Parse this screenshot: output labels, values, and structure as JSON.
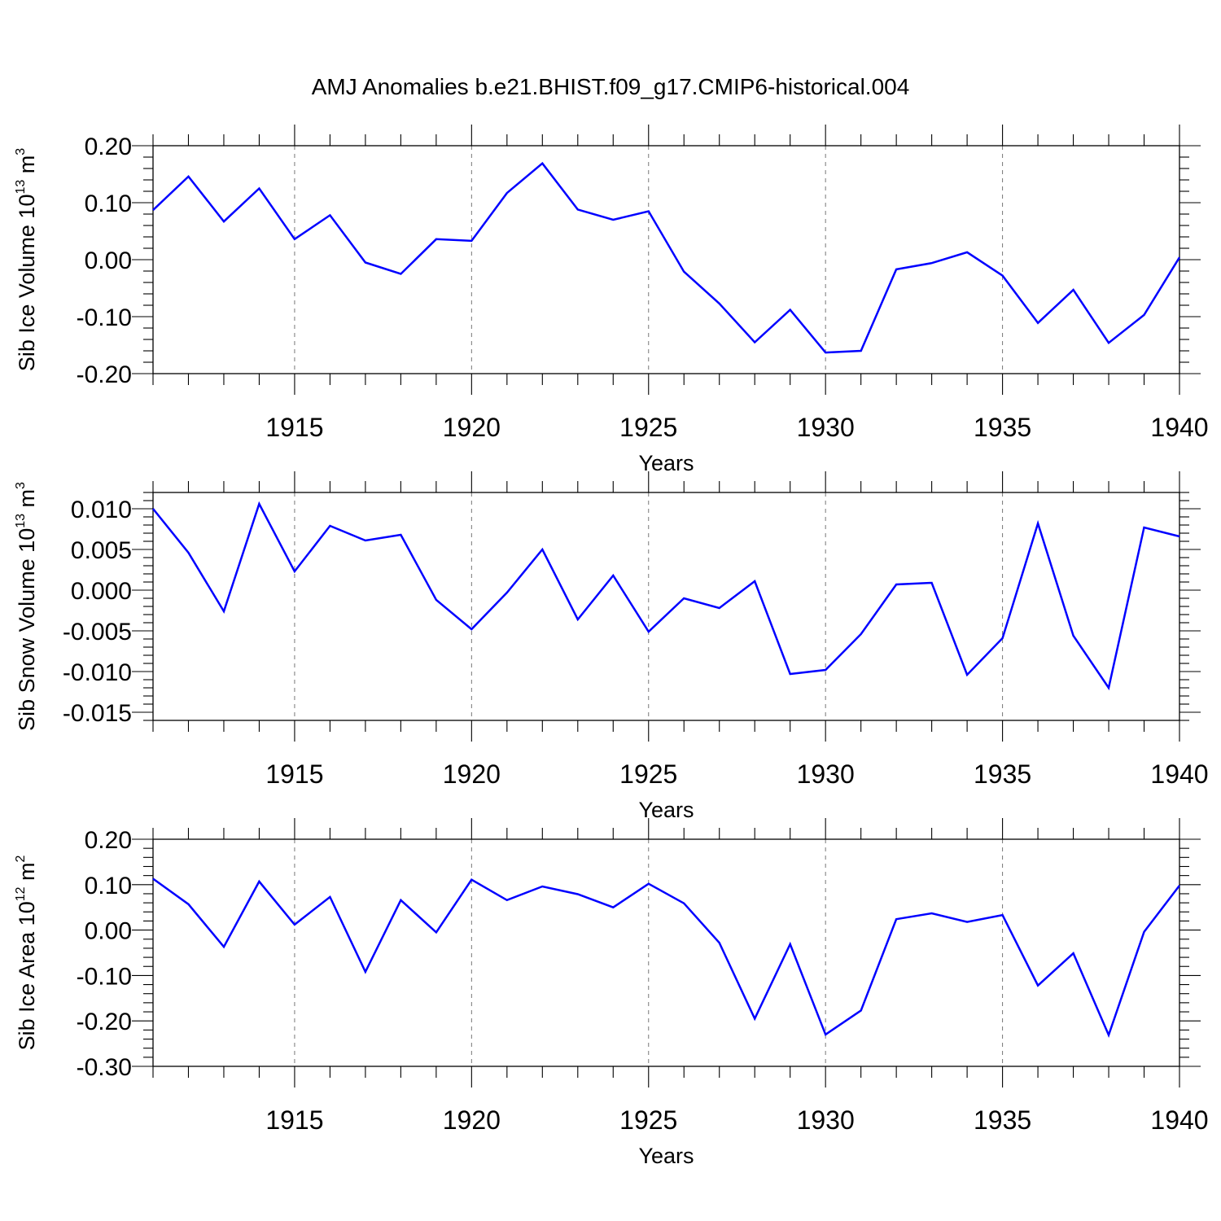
{
  "figure": {
    "title": "AMJ Anomalies b.e21.BHIST.f09_g17.CMIP6-historical.004"
  },
  "chart_data": [
    {
      "type": "line",
      "id": "ice-volume",
      "ylabel": "Sib Ice Volume 10",
      "ylabel_exp": "13",
      "ylabel_unit": " m",
      "ylabel_unit_exp": "3",
      "xlabel": "Years",
      "xlim": [
        1911,
        1940
      ],
      "ylim": [
        -0.2,
        0.2
      ],
      "yticks": [
        0.2,
        0.1,
        0.0,
        -0.1,
        -0.2
      ],
      "ytick_labels": [
        "0.20",
        "0.10",
        "0.00",
        "-0.10",
        "-0.20"
      ],
      "xticks": [
        1915,
        1920,
        1925,
        1930,
        1935,
        1940
      ],
      "xtick_labels": [
        "1915",
        "1920",
        "1925",
        "1930",
        "1935",
        "1940"
      ],
      "grid": "vertical dashed at major x ticks",
      "series": [
        {
          "name": "Sib Ice Volume",
          "color": "#0000ff",
          "x": [
            1911,
            1912,
            1913,
            1914,
            1915,
            1916,
            1917,
            1918,
            1919,
            1920,
            1921,
            1922,
            1923,
            1924,
            1925,
            1926,
            1927,
            1928,
            1929,
            1930,
            1931,
            1932,
            1933,
            1934,
            1935,
            1936,
            1937,
            1938,
            1939,
            1940
          ],
          "values": [
            0.087,
            0.146,
            0.067,
            0.125,
            0.036,
            0.078,
            -0.005,
            -0.025,
            0.036,
            0.033,
            0.117,
            0.169,
            0.088,
            0.07,
            0.085,
            -0.021,
            -0.077,
            -0.145,
            -0.088,
            -0.163,
            -0.16,
            -0.017,
            -0.006,
            0.013,
            -0.028,
            -0.111,
            -0.053,
            -0.146,
            -0.097,
            0.004
          ]
        }
      ]
    },
    {
      "type": "line",
      "id": "snow-volume",
      "ylabel": "Sib Snow Volume 10",
      "ylabel_exp": "13",
      "ylabel_unit": " m",
      "ylabel_unit_exp": "3",
      "xlabel": "Years",
      "xlim": [
        1911,
        1940
      ],
      "ylim": [
        -0.016,
        0.012
      ],
      "yticks": [
        0.01,
        0.005,
        0.0,
        -0.005,
        -0.01,
        -0.015
      ],
      "ytick_labels": [
        "0.010",
        "0.005",
        "0.000",
        "-0.005",
        "-0.010",
        "-0.015"
      ],
      "xticks": [
        1915,
        1920,
        1925,
        1930,
        1935,
        1940
      ],
      "xtick_labels": [
        "1915",
        "1920",
        "1925",
        "1930",
        "1935",
        "1940"
      ],
      "grid": "vertical dashed at major x ticks",
      "series": [
        {
          "name": "Sib Snow Volume",
          "color": "#0000ff",
          "x": [
            1911,
            1912,
            1913,
            1914,
            1915,
            1916,
            1917,
            1918,
            1919,
            1920,
            1921,
            1922,
            1923,
            1924,
            1925,
            1926,
            1927,
            1928,
            1929,
            1930,
            1931,
            1932,
            1933,
            1934,
            1935,
            1936,
            1937,
            1938,
            1939,
            1940
          ],
          "values": [
            0.01,
            0.0046,
            -0.0026,
            0.0106,
            0.0023,
            0.0079,
            0.0061,
            0.0068,
            -0.0012,
            -0.0048,
            -0.0003,
            0.005,
            -0.0036,
            0.0018,
            -0.0051,
            -0.001,
            -0.0022,
            0.0011,
            -0.0103,
            -0.0098,
            -0.0054,
            0.0007,
            0.0009,
            -0.0104,
            -0.0059,
            0.0082,
            -0.0056,
            -0.012,
            0.0077,
            0.0066
          ]
        }
      ]
    },
    {
      "type": "line",
      "id": "ice-area",
      "ylabel": "Sib Ice Area 10",
      "ylabel_exp": "12",
      "ylabel_unit": " m",
      "ylabel_unit_exp": "2",
      "xlabel": "Years",
      "xlim": [
        1911,
        1940
      ],
      "ylim": [
        -0.3,
        0.2
      ],
      "yticks": [
        0.2,
        0.1,
        0.0,
        -0.1,
        -0.2,
        -0.3
      ],
      "ytick_labels": [
        "0.20",
        "0.10",
        "0.00",
        "-0.10",
        "-0.20",
        "-0.30"
      ],
      "xticks": [
        1915,
        1920,
        1925,
        1930,
        1935,
        1940
      ],
      "xtick_labels": [
        "1915",
        "1920",
        "1925",
        "1930",
        "1935",
        "1940"
      ],
      "grid": "vertical dashed at major x ticks",
      "series": [
        {
          "name": "Sib Ice Area",
          "color": "#0000ff",
          "x": [
            1911,
            1912,
            1913,
            1914,
            1915,
            1916,
            1917,
            1918,
            1919,
            1920,
            1921,
            1922,
            1923,
            1924,
            1925,
            1926,
            1927,
            1928,
            1929,
            1930,
            1931,
            1932,
            1933,
            1934,
            1935,
            1936,
            1937,
            1938,
            1939,
            1940
          ],
          "values": [
            0.113,
            0.057,
            -0.037,
            0.107,
            0.012,
            0.073,
            -0.092,
            0.066,
            -0.005,
            0.111,
            0.066,
            0.096,
            0.079,
            0.05,
            0.102,
            0.059,
            -0.028,
            -0.195,
            -0.031,
            -0.23,
            -0.177,
            0.024,
            0.037,
            0.018,
            0.033,
            -0.122,
            -0.051,
            -0.231,
            -0.004,
            0.098
          ]
        }
      ]
    }
  ]
}
